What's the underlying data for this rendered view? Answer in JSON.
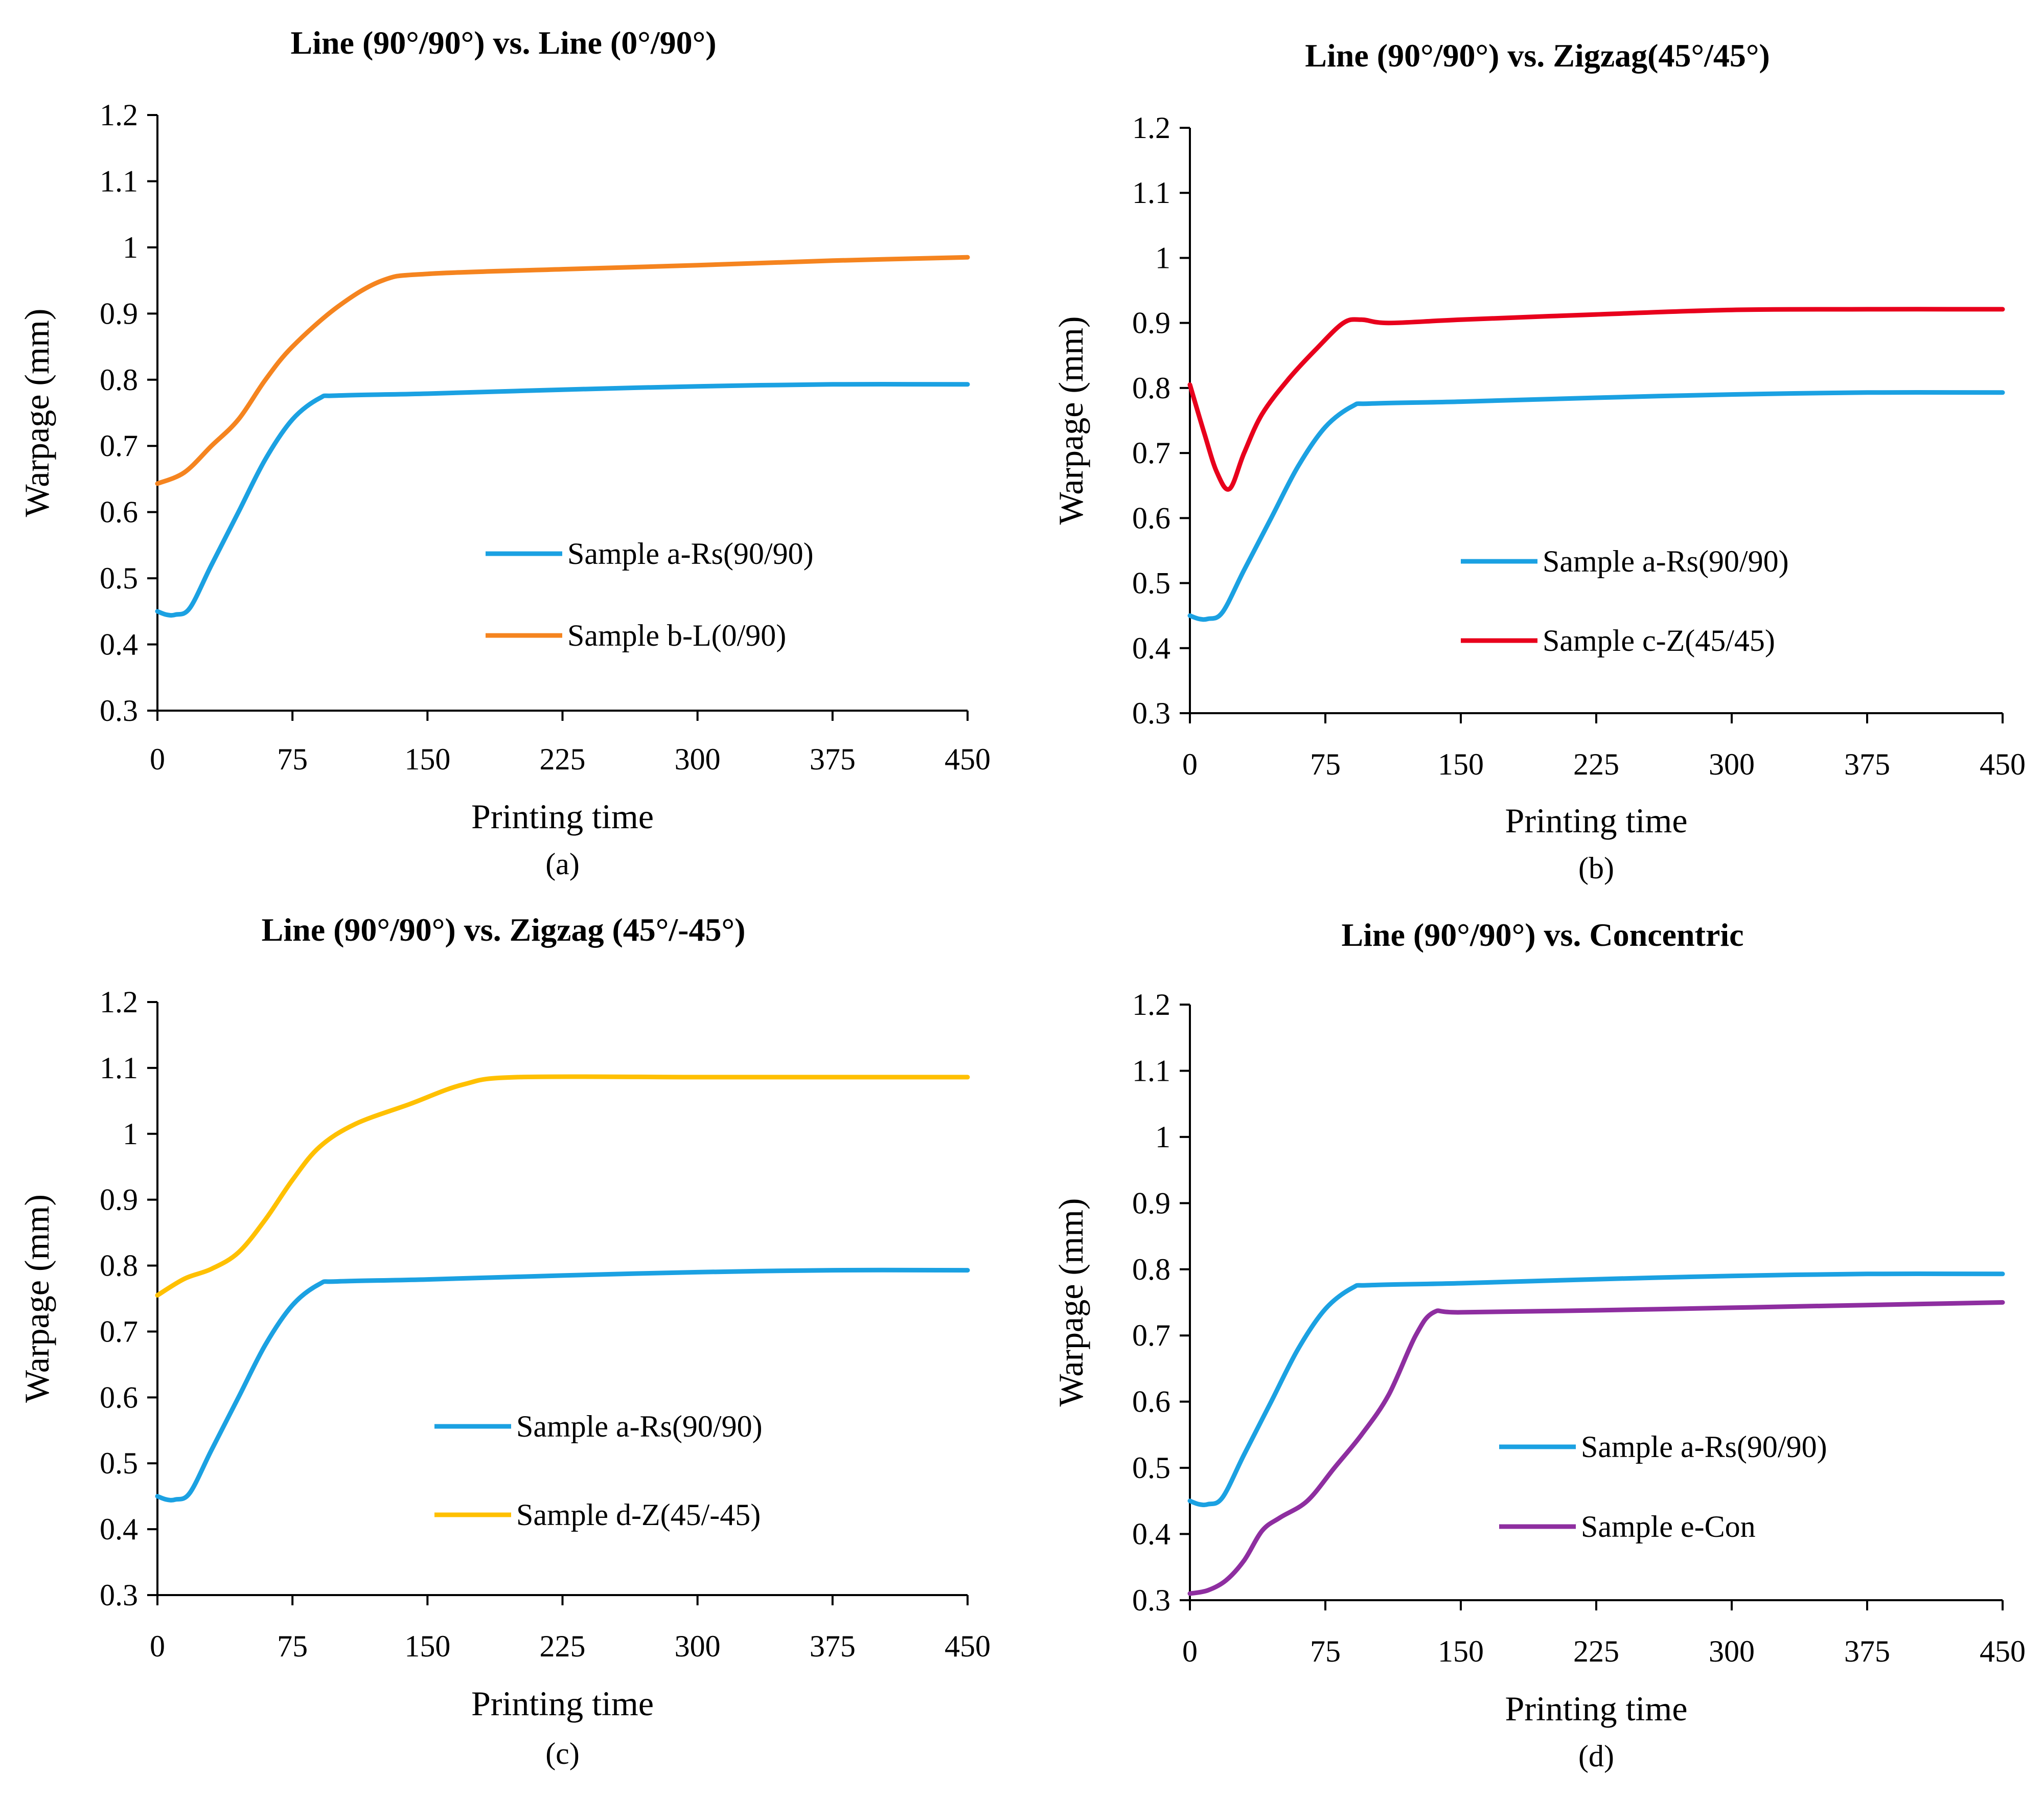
{
  "colors": {
    "rs": "#1ba1e2",
    "orange": "#f5841f",
    "red": "#e8001c",
    "yellow": "#ffc000",
    "purple": "#8e2ea0"
  },
  "chart_data": [
    {
      "panel": "(a)",
      "type": "line",
      "title": "Line (90°/90°) vs. Line (0°/90°)",
      "xlabel": "Printing time",
      "ylabel": "Warpage (mm)",
      "xlim": [
        0,
        450
      ],
      "ylim": [
        0.3,
        1.2
      ],
      "x_ticks": [
        "0",
        "75",
        "150",
        "225",
        "300",
        "375",
        "450"
      ],
      "y_ticks": [
        "0.3",
        "0.4",
        "0.5",
        "0.6",
        "0.7",
        "0.8",
        "0.9",
        "1",
        "1.1",
        "1.2"
      ],
      "series": [
        {
          "name": "Sample a-Rs(90/90)",
          "color_key": "rs",
          "points": [
            [
              0,
              0.45
            ],
            [
              5,
              0.445
            ],
            [
              10,
              0.445
            ],
            [
              18,
              0.455
            ],
            [
              30,
              0.52
            ],
            [
              45,
              0.6
            ],
            [
              60,
              0.68
            ],
            [
              75,
              0.74
            ],
            [
              90,
              0.772
            ],
            [
              100,
              0.776
            ],
            [
              150,
              0.779
            ],
            [
              225,
              0.785
            ],
            [
              300,
              0.79
            ],
            [
              375,
              0.793
            ],
            [
              450,
              0.793
            ]
          ]
        },
        {
          "name": "Sample b-L(0/90)",
          "color_key": "orange",
          "points": [
            [
              0,
              0.643
            ],
            [
              15,
              0.66
            ],
            [
              30,
              0.7
            ],
            [
              45,
              0.74
            ],
            [
              60,
              0.8
            ],
            [
              75,
              0.85
            ],
            [
              100,
              0.91
            ],
            [
              125,
              0.95
            ],
            [
              150,
              0.96
            ],
            [
              225,
              0.967
            ],
            [
              300,
              0.973
            ],
            [
              375,
              0.98
            ],
            [
              450,
              0.985
            ]
          ]
        }
      ]
    },
    {
      "panel": "(b)",
      "type": "line",
      "title": "Line (90°/90°) vs. Zigzag(45°/45°)",
      "xlabel": "Printing time",
      "ylabel": "Warpage (mm)",
      "xlim": [
        0,
        450
      ],
      "ylim": [
        0.3,
        1.2
      ],
      "x_ticks": [
        "0",
        "75",
        "150",
        "225",
        "300",
        "375",
        "450"
      ],
      "y_ticks": [
        "0.3",
        "0.4",
        "0.5",
        "0.6",
        "0.7",
        "0.8",
        "0.9",
        "1",
        "1.1",
        "1.2"
      ],
      "series": [
        {
          "name": "Sample a-Rs(90/90)",
          "color_key": "rs",
          "points": [
            [
              0,
              0.45
            ],
            [
              5,
              0.445
            ],
            [
              10,
              0.445
            ],
            [
              18,
              0.455
            ],
            [
              30,
              0.52
            ],
            [
              45,
              0.6
            ],
            [
              60,
              0.68
            ],
            [
              75,
              0.74
            ],
            [
              90,
              0.772
            ],
            [
              100,
              0.776
            ],
            [
              150,
              0.779
            ],
            [
              225,
              0.785
            ],
            [
              300,
              0.79
            ],
            [
              375,
              0.793
            ],
            [
              450,
              0.793
            ]
          ]
        },
        {
          "name": "Sample c-Z(45/45)",
          "color_key": "red",
          "points": [
            [
              0,
              0.805
            ],
            [
              8,
              0.73
            ],
            [
              15,
              0.67
            ],
            [
              22,
              0.645
            ],
            [
              30,
              0.7
            ],
            [
              40,
              0.76
            ],
            [
              55,
              0.815
            ],
            [
              70,
              0.86
            ],
            [
              85,
              0.9
            ],
            [
              95,
              0.905
            ],
            [
              110,
              0.9
            ],
            [
              150,
              0.905
            ],
            [
              225,
              0.913
            ],
            [
              300,
              0.92
            ],
            [
              375,
              0.921
            ],
            [
              450,
              0.921
            ]
          ]
        }
      ]
    },
    {
      "panel": "(c)",
      "type": "line",
      "title": "Line (90°/90°) vs. Zigzag (45°/-45°)",
      "xlabel": "Printing time",
      "ylabel": "Warpage (mm)",
      "xlim": [
        0,
        450
      ],
      "ylim": [
        0.3,
        1.2
      ],
      "x_ticks": [
        "0",
        "75",
        "150",
        "225",
        "300",
        "375",
        "450"
      ],
      "y_ticks": [
        "0.3",
        "0.4",
        "0.5",
        "0.6",
        "0.7",
        "0.8",
        "0.9",
        "1",
        "1.1",
        "1.2"
      ],
      "series": [
        {
          "name": "Sample a-Rs(90/90)",
          "color_key": "rs",
          "points": [
            [
              0,
              0.45
            ],
            [
              5,
              0.445
            ],
            [
              10,
              0.445
            ],
            [
              18,
              0.455
            ],
            [
              30,
              0.52
            ],
            [
              45,
              0.6
            ],
            [
              60,
              0.68
            ],
            [
              75,
              0.74
            ],
            [
              90,
              0.772
            ],
            [
              100,
              0.776
            ],
            [
              150,
              0.779
            ],
            [
              225,
              0.785
            ],
            [
              300,
              0.79
            ],
            [
              375,
              0.793
            ],
            [
              450,
              0.793
            ]
          ]
        },
        {
          "name": "Sample d-Z(45/-45)",
          "color_key": "yellow",
          "points": [
            [
              0,
              0.755
            ],
            [
              15,
              0.78
            ],
            [
              30,
              0.795
            ],
            [
              45,
              0.82
            ],
            [
              60,
              0.87
            ],
            [
              75,
              0.93
            ],
            [
              90,
              0.98
            ],
            [
              110,
              1.015
            ],
            [
              140,
              1.045
            ],
            [
              170,
              1.075
            ],
            [
              200,
              1.086
            ],
            [
              300,
              1.086
            ],
            [
              375,
              1.086
            ],
            [
              450,
              1.086
            ]
          ]
        }
      ]
    },
    {
      "panel": "(d)",
      "type": "line",
      "title": "Line (90°/90°) vs. Concentric",
      "xlabel": "Printing time",
      "ylabel": "Warpage (mm)",
      "xlim": [
        0,
        450
      ],
      "ylim": [
        0.3,
        1.2
      ],
      "x_ticks": [
        "0",
        "75",
        "150",
        "225",
        "300",
        "375",
        "450"
      ],
      "y_ticks": [
        "0.3",
        "0.4",
        "0.5",
        "0.6",
        "0.7",
        "0.8",
        "0.9",
        "1",
        "1.1",
        "1.2"
      ],
      "series": [
        {
          "name": "Sample a-Rs(90/90)",
          "color_key": "rs",
          "points": [
            [
              0,
              0.45
            ],
            [
              5,
              0.445
            ],
            [
              10,
              0.445
            ],
            [
              18,
              0.455
            ],
            [
              30,
              0.52
            ],
            [
              45,
              0.6
            ],
            [
              60,
              0.68
            ],
            [
              75,
              0.74
            ],
            [
              90,
              0.772
            ],
            [
              100,
              0.776
            ],
            [
              150,
              0.779
            ],
            [
              225,
              0.785
            ],
            [
              300,
              0.79
            ],
            [
              375,
              0.793
            ],
            [
              450,
              0.793
            ]
          ]
        },
        {
          "name": "Sample e-Con",
          "color_key": "purple",
          "points": [
            [
              0,
              0.31
            ],
            [
              10,
              0.315
            ],
            [
              20,
              0.33
            ],
            [
              30,
              0.36
            ],
            [
              40,
              0.405
            ],
            [
              50,
              0.425
            ],
            [
              65,
              0.45
            ],
            [
              80,
              0.5
            ],
            [
              95,
              0.55
            ],
            [
              110,
              0.61
            ],
            [
              125,
              0.7
            ],
            [
              135,
              0.735
            ],
            [
              150,
              0.735
            ],
            [
              225,
              0.738
            ],
            [
              300,
              0.742
            ],
            [
              375,
              0.746
            ],
            [
              450,
              0.75
            ]
          ]
        }
      ]
    }
  ]
}
